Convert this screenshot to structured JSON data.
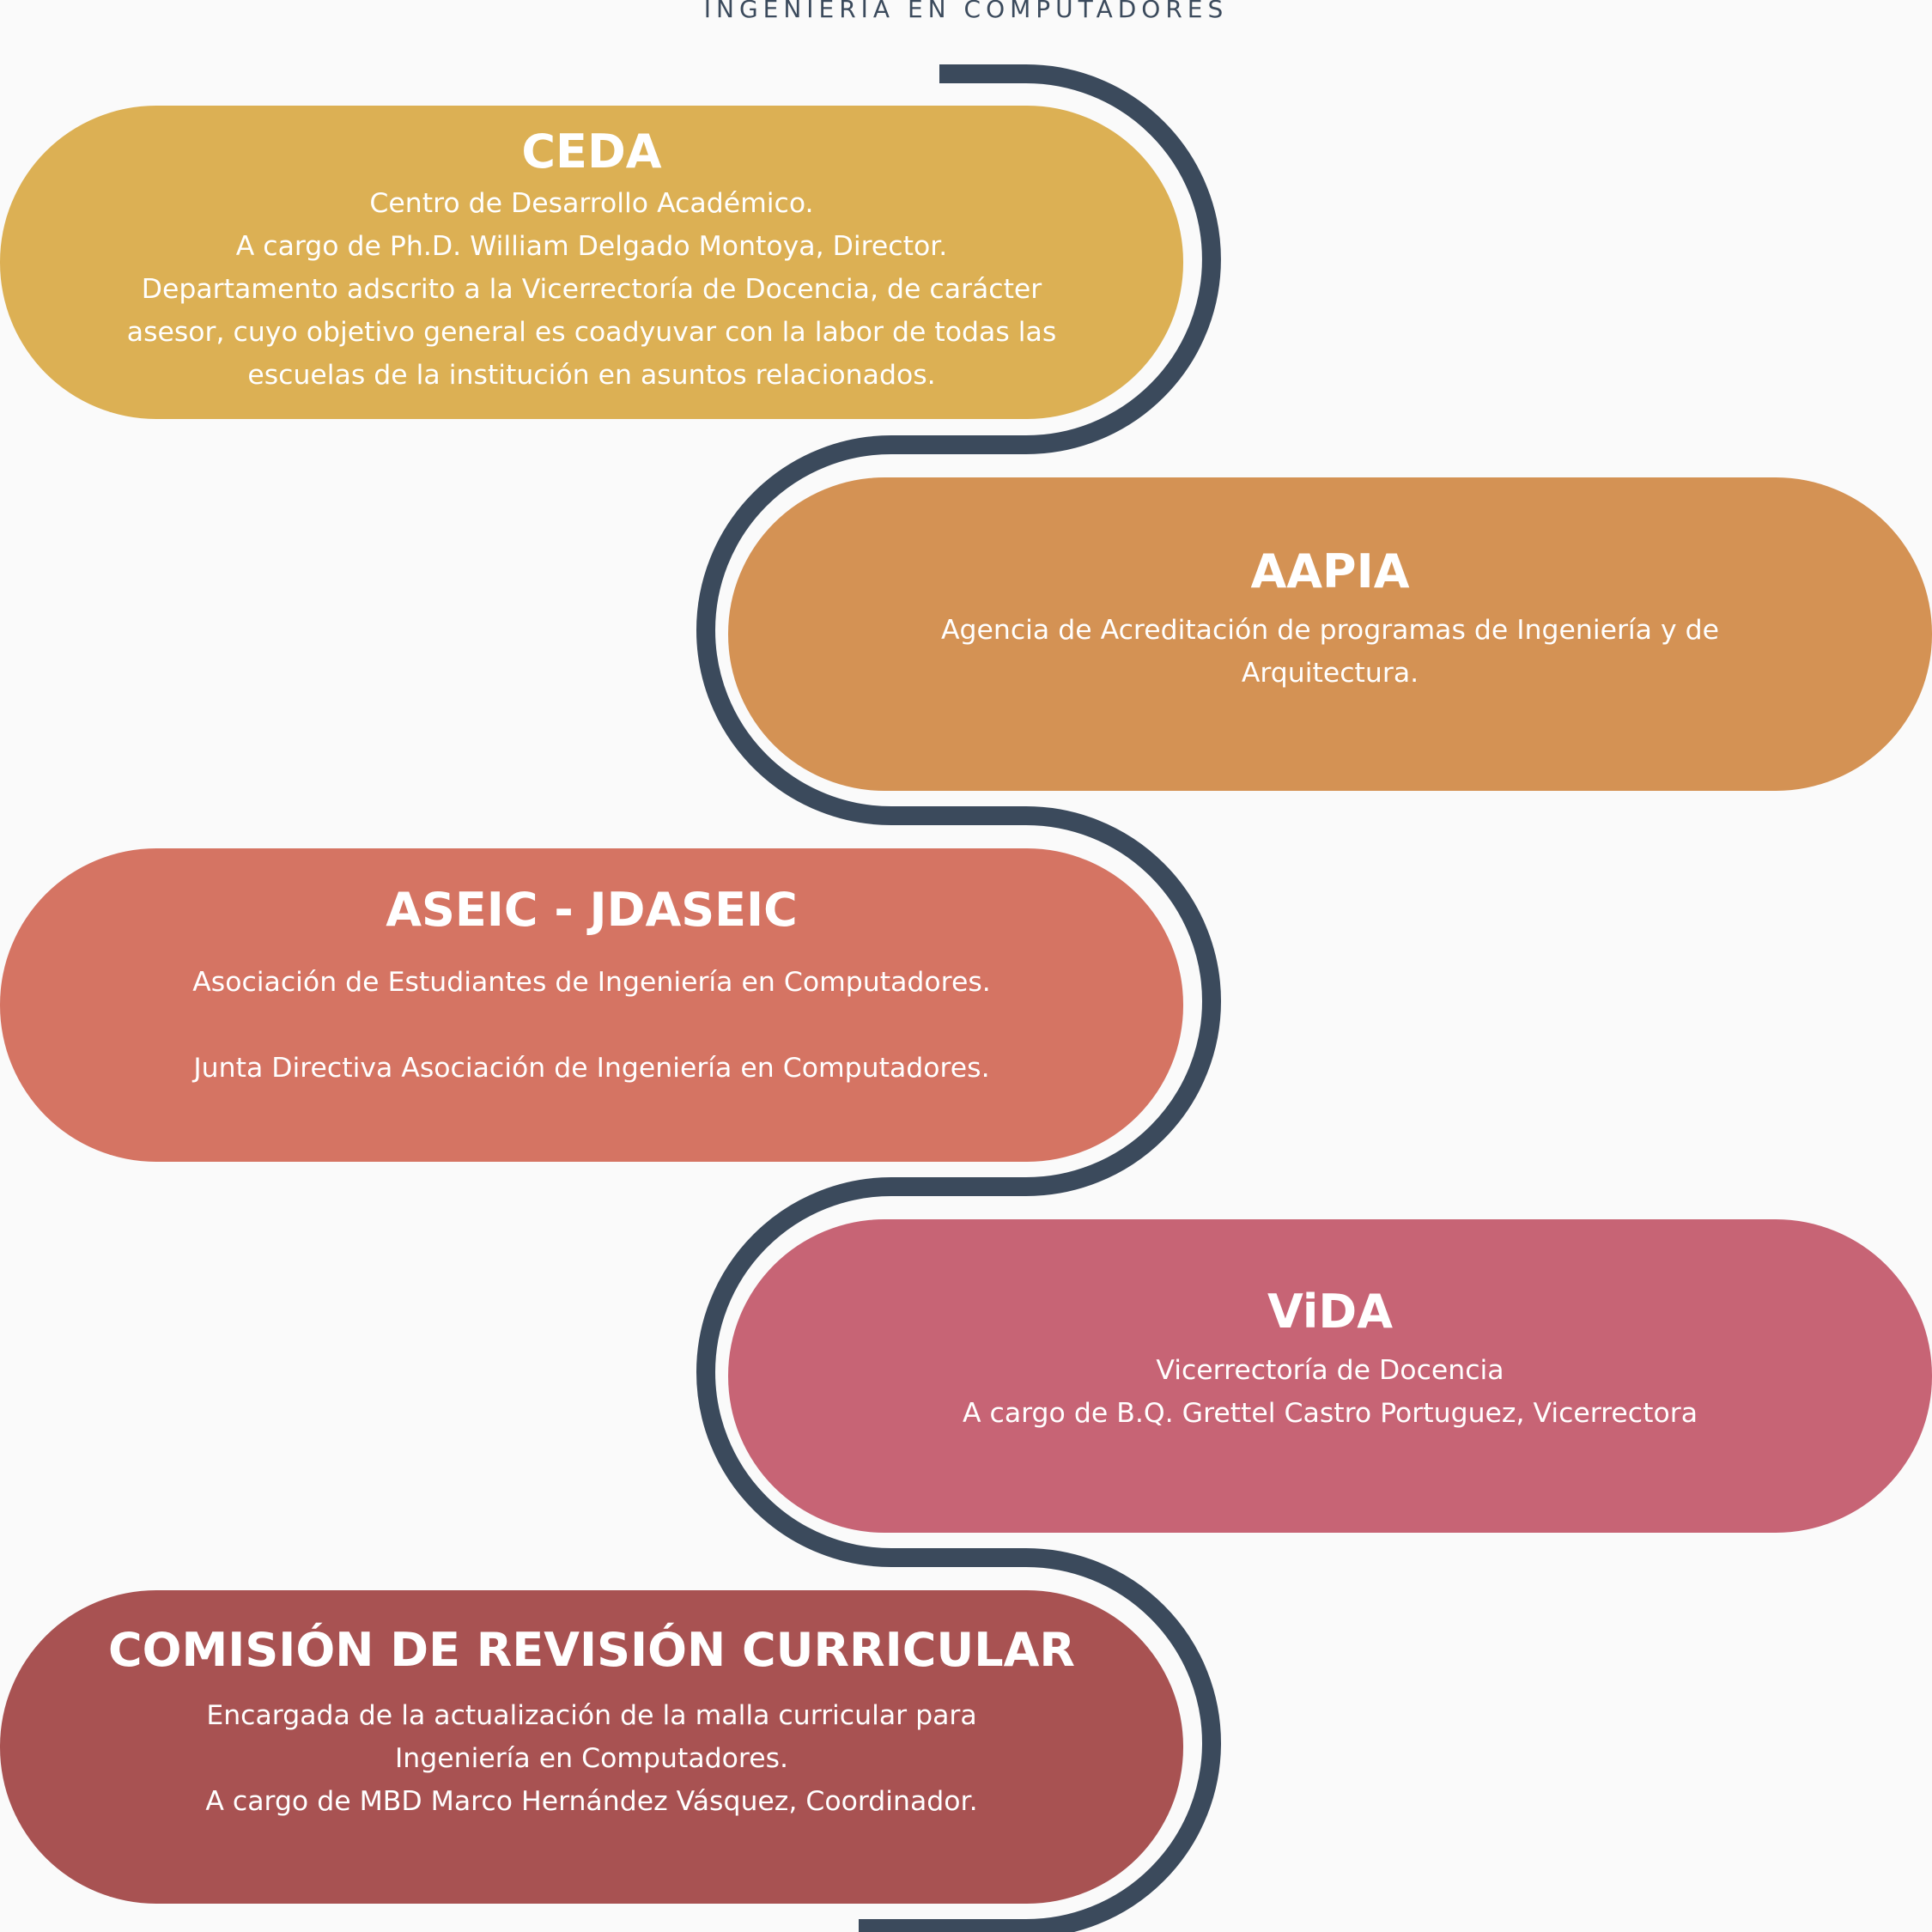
{
  "header": {
    "text": "INGENIERÍA EN COMPUTADORES"
  },
  "colors": {
    "connector": "#3b4a5c",
    "ceda": "#dcb054",
    "aapia": "#d49254",
    "aseic": "#d57463",
    "vida": "#c76475",
    "comision": "#a85252"
  },
  "blocks": [
    {
      "id": "ceda",
      "title": "CEDA",
      "lines": [
        "Centro de Desarrollo Académico.",
        "A cargo de Ph.D. William Delgado Montoya, Director.",
        "Departamento adscrito a la Vicerrectoría de Docencia, de carácter",
        "asesor, cuyo objetivo general es coadyuvar con la labor de todas las",
        "escuelas de la institución en asuntos relacionados."
      ]
    },
    {
      "id": "aapia",
      "title": "AAPIA",
      "lines": [
        "Agencia de Acreditación de programas de Ingeniería y de",
        "Arquitectura."
      ]
    },
    {
      "id": "aseic",
      "title": "ASEIC - JDASEIC",
      "lines": [
        "Asociación de Estudiantes de Ingeniería en Computadores.",
        "",
        "Junta Directiva Asociación de Ingeniería en Computadores."
      ]
    },
    {
      "id": "vida",
      "title": "ViDA",
      "lines": [
        "Vicerrectoría de Docencia",
        "A cargo de B.Q. Grettel Castro Portuguez, Vicerrectora"
      ]
    },
    {
      "id": "comision",
      "title": "COMISIÓN DE REVISIÓN CURRICULAR",
      "lines": [
        "Encargada de la actualización de la malla curricular para",
        "Ingeniería en Computadores.",
        "A cargo de MBD Marco Hernández Vásquez, Coordinador."
      ]
    }
  ]
}
